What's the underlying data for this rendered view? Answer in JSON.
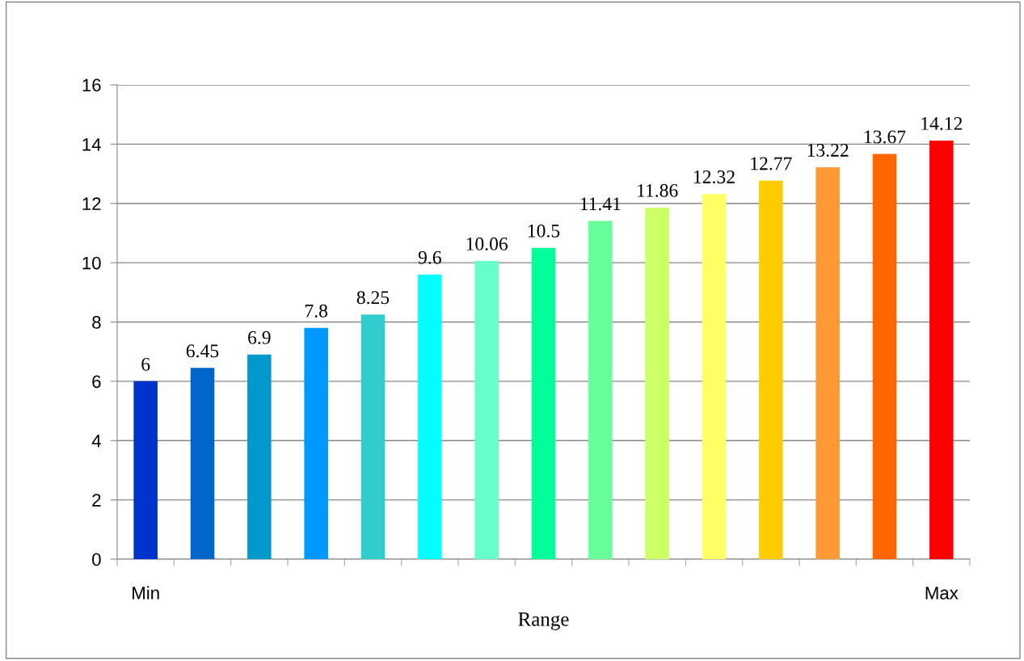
{
  "chart_data": {
    "type": "bar",
    "xlabel": "Range",
    "categories": [
      "Min",
      null,
      null,
      null,
      null,
      null,
      null,
      null,
      null,
      null,
      null,
      null,
      null,
      null,
      "Max"
    ],
    "values": [
      6,
      6.45,
      6.9,
      7.8,
      8.25,
      9.6,
      10.06,
      10.5,
      11.41,
      11.86,
      12.32,
      12.77,
      13.22,
      13.67,
      14.12
    ],
    "colors": [
      "#0033cc",
      "#0066cc",
      "#0099cc",
      "#0099ff",
      "#33cccc",
      "#00ffff",
      "#66ffcc",
      "#00ff99",
      "#66ff99",
      "#ccff66",
      "#ffff66",
      "#ffcc00",
      "#ff9933",
      "#ff6600",
      "#ff0000"
    ],
    "ylim": [
      0,
      16
    ],
    "yticks": [
      0,
      2,
      4,
      6,
      8,
      10,
      12,
      14,
      16
    ],
    "grid": "y",
    "data_labels": true
  }
}
